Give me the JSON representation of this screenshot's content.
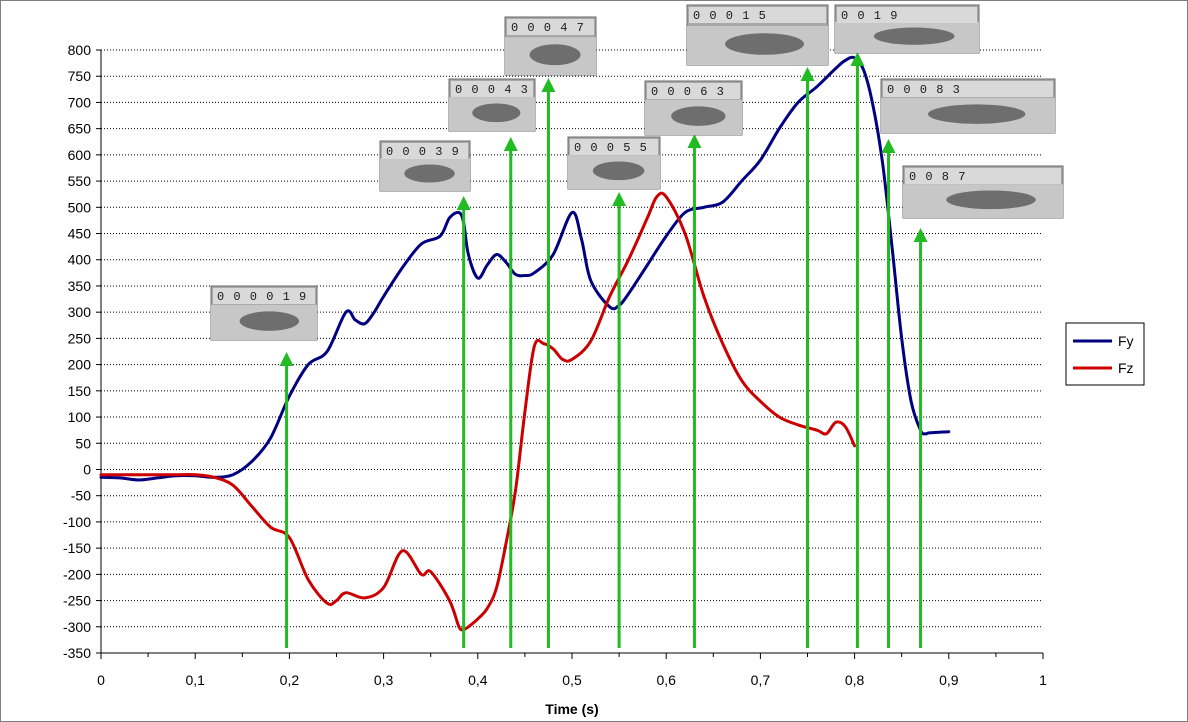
{
  "chart_data": {
    "type": "line",
    "title": "",
    "xlabel": "Time (s)",
    "ylabel": "",
    "xlim": [
      0,
      1
    ],
    "ylim": [
      -350,
      800
    ],
    "xticks": [
      0,
      0.1,
      0.2,
      0.3,
      0.4,
      0.5,
      0.6,
      0.7,
      0.8,
      0.9,
      1
    ],
    "xtick_labels": [
      "0",
      "0,1",
      "0,2",
      "0,3",
      "0,4",
      "0,5",
      "0,6",
      "0,7",
      "0,8",
      "0,9",
      "1"
    ],
    "yticks": [
      -350,
      -300,
      -250,
      -200,
      -150,
      -100,
      -50,
      0,
      50,
      100,
      150,
      200,
      250,
      300,
      350,
      400,
      450,
      500,
      550,
      600,
      650,
      700,
      750,
      800
    ],
    "grid": "horizontal dotted",
    "legend_position": "right",
    "series": [
      {
        "name": "Fy",
        "color": "#000080",
        "x": [
          0,
          0.02,
          0.04,
          0.06,
          0.08,
          0.1,
          0.12,
          0.14,
          0.16,
          0.18,
          0.2,
          0.22,
          0.24,
          0.26,
          0.27,
          0.28,
          0.29,
          0.3,
          0.32,
          0.34,
          0.36,
          0.37,
          0.38,
          0.385,
          0.39,
          0.4,
          0.41,
          0.42,
          0.43,
          0.44,
          0.45,
          0.46,
          0.48,
          0.5,
          0.51,
          0.52,
          0.54,
          0.55,
          0.56,
          0.58,
          0.6,
          0.62,
          0.64,
          0.66,
          0.68,
          0.7,
          0.72,
          0.74,
          0.76,
          0.78,
          0.79,
          0.8,
          0.81,
          0.82,
          0.83,
          0.84,
          0.85,
          0.86,
          0.87,
          0.875,
          0.88,
          0.9
        ],
        "y": [
          -15,
          -16,
          -20,
          -16,
          -12,
          -12,
          -15,
          -10,
          15,
          60,
          140,
          200,
          225,
          300,
          285,
          278,
          300,
          330,
          385,
          430,
          445,
          480,
          490,
          470,
          410,
          365,
          390,
          410,
          395,
          372,
          370,
          375,
          410,
          490,
          440,
          360,
          310,
          313,
          335,
          390,
          445,
          490,
          500,
          510,
          550,
          590,
          650,
          700,
          730,
          765,
          780,
          785,
          760,
          690,
          580,
          420,
          250,
          130,
          75,
          68,
          70,
          72
        ]
      },
      {
        "name": "Fz",
        "color": "#cc0000",
        "x": [
          0,
          0.02,
          0.04,
          0.06,
          0.08,
          0.1,
          0.12,
          0.14,
          0.16,
          0.18,
          0.2,
          0.22,
          0.24,
          0.25,
          0.26,
          0.28,
          0.3,
          0.32,
          0.34,
          0.35,
          0.37,
          0.38,
          0.385,
          0.39,
          0.4,
          0.41,
          0.42,
          0.43,
          0.44,
          0.45,
          0.46,
          0.47,
          0.48,
          0.49,
          0.5,
          0.52,
          0.54,
          0.56,
          0.58,
          0.59,
          0.6,
          0.62,
          0.64,
          0.66,
          0.68,
          0.7,
          0.72,
          0.74,
          0.76,
          0.77,
          0.78,
          0.79,
          0.8
        ],
        "y": [
          -10,
          -10,
          -10,
          -10,
          -10,
          -10,
          -15,
          -30,
          -70,
          -110,
          -130,
          -210,
          -255,
          -250,
          -235,
          -245,
          -225,
          -155,
          -200,
          -195,
          -250,
          -300,
          -305,
          -300,
          -285,
          -265,
          -225,
          -140,
          -40,
          110,
          235,
          240,
          230,
          210,
          210,
          245,
          330,
          400,
          480,
          520,
          520,
          450,
          330,
          240,
          170,
          130,
          100,
          85,
          75,
          68,
          90,
          82,
          45
        ]
      }
    ],
    "arrows_x": [
      0.197,
      0.385,
      0.435,
      0.475,
      0.55,
      0.63,
      0.75,
      0.803,
      0.836,
      0.87
    ],
    "frames": [
      {
        "label": "0 0 0 0 1 9",
        "at_x": 0.197
      },
      {
        "label": "0 0 0 3 9",
        "at_x": 0.385
      },
      {
        "label": "0 0 0 4 3",
        "at_x": 0.435
      },
      {
        "label": "0 0 0 4 7",
        "at_x": 0.475
      },
      {
        "label": "0 0 0 5 5",
        "at_x": 0.55
      },
      {
        "label": "0 0 0 6 3",
        "at_x": 0.63
      },
      {
        "label": "0 0 0 1 5",
        "at_x": 0.75
      },
      {
        "label": "0 0 1 9",
        "at_x": 0.803
      },
      {
        "label": "0 0 0 8 3",
        "at_x": 0.836
      },
      {
        "label": "0 0 8 7",
        "at_x": 0.87
      }
    ],
    "arrow_color": "#22bb22"
  }
}
